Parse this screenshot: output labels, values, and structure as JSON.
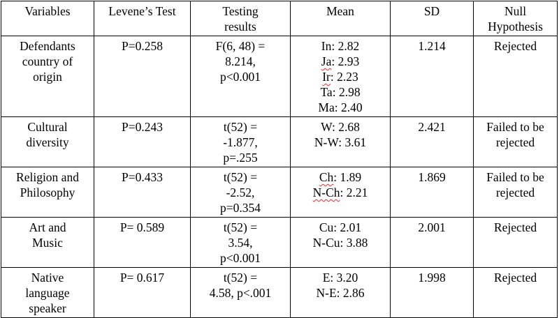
{
  "table": {
    "headers": [
      [
        "Variables"
      ],
      [
        "Levene’s Test"
      ],
      [
        "Testing",
        "results"
      ],
      [
        "Mean"
      ],
      [
        "SD"
      ],
      [
        "Null",
        "Hypothesis"
      ]
    ],
    "rows": [
      {
        "variable": [
          "Defendants",
          "country of",
          "origin"
        ],
        "levene": "P=0.258",
        "testing": [
          "F(6, 48) =",
          "8.214,",
          "p<0.001"
        ],
        "mean": [
          {
            "abbr": "In",
            "value": "2.82",
            "flagged": false
          },
          {
            "abbr": "Ja",
            "value": "2.93",
            "flagged": true
          },
          {
            "abbr": "Ir",
            "value": "2.23",
            "flagged": true
          },
          {
            "abbr": "Ta",
            "value": "2.98",
            "flagged": false
          },
          {
            "abbr": "Ma",
            "value": "2.40",
            "flagged": false
          }
        ],
        "sd": "1.214",
        "null": [
          "Rejected"
        ]
      },
      {
        "variable": [
          "Cultural",
          "diversity"
        ],
        "levene": "P=0.243",
        "testing": [
          "t(52) =",
          "-1.877,",
          "p=.255"
        ],
        "mean": [
          {
            "abbr": "W",
            "value": "2.68",
            "flagged": false
          },
          {
            "abbr": "N-W",
            "value": "3.61",
            "flagged": false
          }
        ],
        "sd": "2.421",
        "null": [
          "Failed to be",
          "rejected"
        ]
      },
      {
        "variable": [
          "Religion and",
          "Philosophy"
        ],
        "levene": "P=0.433",
        "testing": [
          "t(52) =",
          "-2.52,",
          "p=0.354"
        ],
        "mean": [
          {
            "abbr": "Ch",
            "value": "1.89",
            "flagged": true
          },
          {
            "abbr": "N-Ch",
            "value": "2.21",
            "flagged": true
          }
        ],
        "sd": "1.869",
        "null": [
          "Failed to be",
          "rejected"
        ]
      },
      {
        "variable": [
          "Art and",
          "Music"
        ],
        "levene": "P= 0.589",
        "testing": [
          "t(52) =",
          "3.54,",
          "p<0.001"
        ],
        "mean": [
          {
            "abbr": "Cu",
            "value": "2.01",
            "flagged": false
          },
          {
            "abbr": "N-Cu",
            "value": "3.88",
            "flagged": false
          }
        ],
        "sd": "2.001",
        "null": [
          "Rejected"
        ]
      },
      {
        "variable": [
          "Native",
          "language",
          "speaker"
        ],
        "levene": "P= 0.617",
        "testing": [
          "t(52) =",
          "4.58, p<.001"
        ],
        "mean": [
          {
            "abbr": "E",
            "value": "3.20",
            "flagged": false
          },
          {
            "abbr": "N-E",
            "value": "2.86",
            "flagged": false
          }
        ],
        "sd": "1.998",
        "null": [
          "Rejected"
        ]
      }
    ]
  }
}
